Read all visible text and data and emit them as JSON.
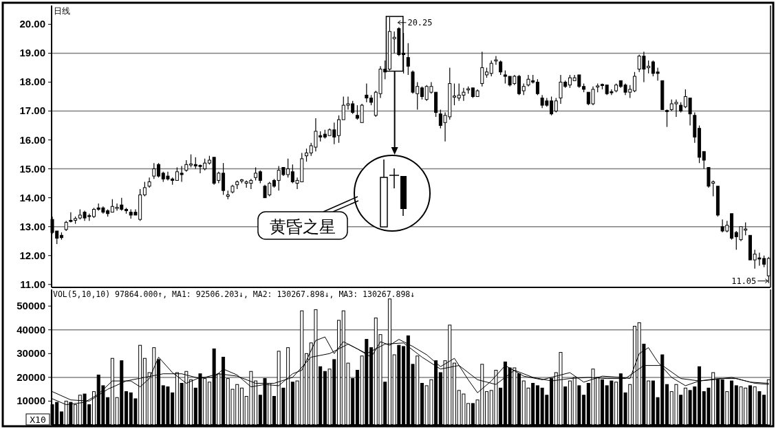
{
  "chart_data": [
    {
      "type": "candlestick",
      "title": "日线",
      "categories": [
        null,
        null,
        null,
        null,
        null,
        null,
        null,
        null,
        null,
        null,
        null,
        null,
        null,
        null,
        null,
        null,
        null,
        null,
        null,
        null,
        null,
        null,
        null,
        null,
        null,
        null,
        null,
        null,
        null,
        null,
        null,
        null,
        null,
        null,
        null,
        null,
        null,
        null,
        null,
        null,
        null,
        null,
        null,
        null,
        null,
        null,
        null,
        null,
        null,
        null,
        null,
        null,
        null,
        null,
        null,
        null,
        null,
        null,
        null,
        null,
        null,
        null,
        null,
        null,
        null,
        null,
        null,
        null,
        null,
        null,
        null,
        null,
        null,
        null,
        null,
        null,
        null,
        null,
        null,
        null,
        null,
        null,
        null,
        null,
        null,
        null,
        null,
        null,
        null,
        null,
        null,
        null,
        null,
        null,
        null,
        null,
        null,
        null,
        null,
        null,
        null,
        null,
        null,
        null,
        null,
        null,
        null,
        null,
        null,
        null,
        null,
        null,
        null,
        null,
        null,
        null,
        null,
        null,
        null,
        null,
        null,
        null,
        null,
        null,
        null,
        null,
        null,
        null,
        null,
        null,
        null,
        null,
        null,
        null,
        null,
        null,
        null,
        null,
        null,
        null,
        null,
        null,
        null,
        null,
        null,
        null,
        null,
        null,
        null,
        null,
        null,
        null,
        null,
        null,
        null,
        null
      ],
      "ohlc": [
        [
          13.25,
          13.35,
          12.75,
          12.8
        ],
        [
          12.85,
          12.85,
          12.4,
          12.6
        ],
        [
          12.7,
          12.8,
          12.55,
          12.62
        ],
        [
          12.9,
          13.2,
          12.85,
          13.15
        ],
        [
          13.22,
          13.5,
          13.15,
          13.18
        ],
        [
          13.22,
          13.35,
          13.1,
          13.28
        ],
        [
          13.3,
          13.6,
          13.25,
          13.4
        ],
        [
          13.5,
          13.55,
          13.2,
          13.3
        ],
        [
          13.38,
          13.45,
          13.2,
          13.35
        ],
        [
          13.35,
          13.65,
          13.3,
          13.6
        ],
        [
          13.65,
          13.8,
          13.55,
          13.6
        ],
        [
          13.65,
          13.7,
          13.45,
          13.5
        ],
        [
          13.55,
          13.6,
          13.35,
          13.45
        ],
        [
          13.5,
          13.95,
          13.5,
          13.7
        ],
        [
          13.63,
          13.8,
          13.55,
          13.67
        ],
        [
          13.75,
          14.0,
          13.55,
          13.6
        ],
        [
          13.6,
          13.65,
          13.45,
          13.55
        ],
        [
          13.5,
          13.6,
          13.28,
          13.4
        ],
        [
          13.5,
          13.6,
          13.4,
          13.4
        ],
        [
          13.25,
          14.3,
          13.2,
          14.1
        ],
        [
          14.1,
          14.55,
          14.05,
          14.35
        ],
        [
          14.4,
          14.7,
          14.35,
          14.55
        ],
        [
          14.75,
          15.2,
          14.65,
          15.0
        ],
        [
          15.15,
          15.2,
          14.7,
          14.75
        ],
        [
          14.85,
          14.9,
          14.55,
          14.65
        ],
        [
          14.75,
          14.9,
          14.6,
          14.65
        ],
        [
          14.65,
          14.7,
          14.45,
          14.6
        ],
        [
          14.6,
          15.05,
          14.6,
          14.9
        ],
        [
          14.85,
          15.1,
          14.55,
          14.8
        ],
        [
          14.95,
          15.3,
          14.9,
          15.15
        ],
        [
          15.13,
          15.5,
          15.05,
          15.17
        ],
        [
          15.15,
          15.4,
          15.0,
          15.1
        ],
        [
          15.12,
          15.15,
          14.85,
          15.08
        ],
        [
          15.0,
          15.35,
          14.95,
          15.2
        ],
        [
          15.2,
          15.45,
          15.15,
          15.3
        ],
        [
          15.4,
          15.4,
          14.45,
          14.5
        ],
        [
          14.6,
          14.9,
          14.5,
          14.85
        ],
        [
          14.85,
          15.2,
          14.1,
          14.25
        ],
        [
          14.05,
          14.25,
          13.95,
          14.1
        ],
        [
          14.2,
          14.45,
          14.15,
          14.4
        ],
        [
          14.45,
          14.6,
          14.3,
          14.55
        ],
        [
          14.58,
          14.65,
          14.5,
          14.62
        ],
        [
          14.5,
          14.6,
          14.35,
          14.55
        ],
        [
          14.5,
          14.65,
          14.3,
          14.6
        ],
        [
          14.7,
          15.05,
          14.6,
          14.85
        ],
        [
          14.9,
          14.95,
          14.5,
          14.6
        ],
        [
          14.4,
          14.45,
          14.0,
          14.0
        ],
        [
          14.1,
          14.55,
          14.05,
          14.5
        ],
        [
          14.6,
          14.65,
          14.35,
          14.4
        ],
        [
          14.6,
          15.1,
          14.25,
          14.95
        ],
        [
          15.05,
          15.05,
          14.75,
          14.8
        ],
        [
          14.8,
          15.35,
          14.7,
          15.0
        ],
        [
          14.9,
          15.15,
          14.5,
          14.55
        ],
        [
          14.5,
          14.7,
          14.3,
          14.6
        ],
        [
          14.55,
          15.55,
          14.55,
          15.35
        ],
        [
          15.45,
          15.7,
          15.25,
          15.55
        ],
        [
          15.55,
          15.9,
          15.45,
          15.8
        ],
        [
          15.75,
          16.75,
          15.6,
          16.3
        ],
        [
          16.15,
          16.3,
          15.95,
          16.1
        ],
        [
          16.2,
          16.35,
          16.05,
          16.1
        ],
        [
          16.15,
          16.4,
          16.15,
          16.35
        ],
        [
          16.35,
          16.6,
          15.85,
          16.1
        ],
        [
          16.15,
          16.85,
          15.9,
          16.7
        ],
        [
          16.7,
          17.5,
          16.7,
          17.2
        ],
        [
          17.2,
          17.5,
          17.05,
          17.25
        ],
        [
          17.25,
          17.35,
          16.9,
          16.95
        ],
        [
          16.85,
          17.2,
          16.7,
          16.75
        ],
        [
          16.6,
          17.25,
          16.6,
          17.2
        ],
        [
          17.55,
          17.95,
          17.3,
          17.45
        ],
        [
          17.45,
          17.55,
          17.2,
          17.3
        ],
        [
          16.85,
          17.7,
          16.8,
          17.65
        ],
        [
          17.6,
          18.55,
          17.45,
          18.45
        ],
        [
          18.45,
          18.75,
          18.1,
          18.35
        ],
        [
          18.45,
          20.25,
          18.4,
          19.75
        ],
        [
          19.5,
          19.75,
          19.0,
          19.55
        ],
        [
          19.85,
          19.9,
          18.9,
          18.95
        ],
        [
          19.0,
          19.7,
          18.3,
          18.95
        ],
        [
          18.85,
          19.35,
          18.25,
          18.55
        ],
        [
          18.35,
          18.4,
          17.6,
          17.65
        ],
        [
          17.6,
          18.0,
          17.05,
          17.85
        ],
        [
          17.8,
          17.85,
          17.4,
          17.5
        ],
        [
          17.4,
          17.9,
          17.35,
          17.85
        ],
        [
          17.65,
          18.0,
          17.6,
          17.85
        ],
        [
          17.65,
          17.65,
          16.8,
          16.95
        ],
        [
          16.9,
          17.05,
          16.4,
          16.5
        ],
        [
          16.6,
          16.95,
          15.95,
          16.85
        ],
        [
          16.8,
          18.5,
          16.7,
          17.95
        ],
        [
          17.48,
          17.95,
          17.2,
          17.52
        ],
        [
          17.45,
          17.95,
          17.35,
          17.55
        ],
        [
          17.55,
          17.8,
          17.35,
          17.65
        ],
        [
          17.73,
          17.85,
          17.6,
          17.77
        ],
        [
          17.8,
          17.8,
          17.45,
          17.5
        ],
        [
          17.5,
          17.75,
          17.5,
          17.7
        ],
        [
          17.95,
          19.05,
          17.85,
          18.5
        ],
        [
          18.25,
          18.5,
          18.15,
          18.35
        ],
        [
          18.3,
          18.75,
          18.2,
          18.65
        ],
        [
          18.73,
          18.9,
          18.6,
          18.77
        ],
        [
          18.7,
          18.75,
          18.25,
          18.35
        ],
        [
          18.25,
          18.4,
          17.95,
          18.2
        ],
        [
          18.2,
          18.2,
          17.85,
          17.9
        ],
        [
          17.95,
          18.25,
          17.9,
          18.2
        ],
        [
          18.2,
          18.25,
          17.55,
          17.6
        ],
        [
          17.7,
          17.95,
          17.55,
          17.85
        ],
        [
          17.9,
          18.25,
          17.85,
          18.1
        ],
        [
          18.05,
          18.25,
          17.95,
          18.0
        ],
        [
          18.0,
          18.1,
          17.55,
          17.6
        ],
        [
          17.45,
          17.55,
          17.1,
          17.2
        ],
        [
          17.35,
          17.45,
          17.15,
          17.2
        ],
        [
          17.35,
          17.5,
          16.85,
          16.9
        ],
        [
          17.0,
          17.45,
          16.95,
          17.35
        ],
        [
          17.45,
          18.25,
          17.25,
          18.0
        ],
        [
          18.0,
          18.05,
          17.8,
          17.85
        ],
        [
          17.9,
          18.25,
          17.8,
          18.15
        ],
        [
          18.05,
          18.25,
          18.05,
          18.15
        ],
        [
          18.25,
          18.25,
          17.8,
          17.85
        ],
        [
          17.85,
          17.95,
          17.65,
          17.75
        ],
        [
          17.65,
          17.65,
          17.2,
          17.25
        ],
        [
          17.25,
          17.85,
          17.2,
          17.75
        ],
        [
          17.83,
          17.95,
          17.65,
          17.87
        ],
        [
          17.92,
          17.95,
          17.75,
          17.88
        ],
        [
          17.9,
          17.9,
          17.55,
          17.6
        ],
        [
          17.67,
          17.75,
          17.55,
          17.63
        ],
        [
          17.7,
          17.95,
          17.65,
          17.9
        ],
        [
          18.05,
          18.05,
          17.8,
          17.85
        ],
        [
          17.9,
          17.95,
          17.55,
          17.65
        ],
        [
          17.65,
          17.9,
          17.45,
          17.75
        ],
        [
          17.7,
          18.35,
          17.65,
          18.2
        ],
        [
          18.45,
          18.95,
          18.35,
          18.9
        ],
        [
          18.9,
          19.05,
          18.0,
          18.45
        ],
        [
          18.5,
          18.75,
          18.3,
          18.55
        ],
        [
          18.7,
          18.75,
          18.2,
          18.3
        ],
        [
          18.35,
          18.5,
          18.05,
          18.3
        ],
        [
          18.05,
          18.05,
          17.05,
          17.05
        ],
        [
          17.02,
          17.05,
          16.45,
          16.98
        ],
        [
          17.05,
          17.4,
          17.0,
          17.25
        ],
        [
          17.25,
          17.4,
          16.8,
          17.3
        ],
        [
          17.2,
          17.3,
          16.95,
          17.0
        ],
        [
          17.15,
          17.75,
          17.1,
          17.5
        ],
        [
          17.45,
          17.45,
          16.5,
          16.9
        ],
        [
          16.85,
          16.95,
          15.9,
          16.1
        ],
        [
          16.4,
          16.5,
          15.2,
          15.4
        ],
        [
          15.6,
          15.6,
          15.0,
          15.3
        ],
        [
          15.05,
          15.05,
          14.35,
          14.4
        ],
        [
          14.5,
          14.6,
          14.05,
          14.55
        ],
        [
          14.4,
          14.4,
          13.35,
          13.4
        ],
        [
          13.0,
          13.25,
          12.8,
          12.85
        ],
        [
          12.85,
          13.2,
          12.8,
          13.05
        ],
        [
          13.45,
          13.45,
          12.55,
          12.6
        ],
        [
          12.8,
          12.85,
          12.2,
          12.65
        ],
        [
          12.55,
          13.0,
          12.5,
          13.0
        ],
        [
          12.88,
          13.15,
          12.7,
          12.92
        ],
        [
          12.7,
          12.7,
          11.85,
          11.85
        ],
        [
          11.85,
          12.2,
          11.55,
          12.05
        ],
        [
          11.92,
          12.1,
          11.65,
          11.88
        ],
        [
          11.9,
          12.0,
          11.6,
          11.7
        ],
        [
          11.3,
          11.95,
          11.05,
          11.9
        ]
      ],
      "ylim": [
        10.9,
        20.65
      ],
      "yticks": [
        {
          "value": 11,
          "label": "11.00"
        },
        {
          "value": 12,
          "label": "12.00"
        },
        {
          "value": 13,
          "label": "13.00"
        },
        {
          "value": 14,
          "label": "14.00"
        },
        {
          "value": 15,
          "label": "15.00"
        },
        {
          "value": 16,
          "label": "16.00"
        },
        {
          "value": 17,
          "label": "17.00"
        },
        {
          "value": 18,
          "label": "18.00"
        },
        {
          "value": 19,
          "label": "19.00"
        },
        {
          "value": 20,
          "label": "20.00"
        }
      ],
      "tick_labels": "y",
      "ref_lines": [
        {
          "axis": "y",
          "value": 13
        },
        {
          "axis": "y",
          "value": 15
        },
        {
          "axis": "y",
          "value": 17
        },
        {
          "axis": "y",
          "value": 19
        }
      ],
      "annotations": [
        "20.25",
        "11.05",
        "黄昏之星"
      ]
    },
    {
      "type": "bar",
      "categories": [
        null,
        null,
        null,
        null,
        null,
        null,
        null,
        null,
        null,
        null,
        null,
        null,
        null,
        null,
        null,
        null,
        null,
        null,
        null,
        null,
        null,
        null,
        null,
        null,
        null,
        null,
        null,
        null,
        null,
        null,
        null,
        null,
        null,
        null,
        null,
        null,
        null,
        null,
        null,
        null,
        null,
        null,
        null,
        null,
        null,
        null,
        null,
        null,
        null,
        null,
        null,
        null,
        null,
        null,
        null,
        null,
        null,
        null,
        null,
        null,
        null,
        null,
        null,
        null,
        null,
        null,
        null,
        null,
        null,
        null,
        null,
        null,
        null,
        null,
        null,
        null,
        null,
        null,
        null,
        null,
        null,
        null,
        null,
        null,
        null,
        null,
        null,
        null,
        null,
        null,
        null,
        null,
        null,
        null,
        null,
        null,
        null,
        null,
        null,
        null,
        null,
        null,
        null,
        null,
        null,
        null,
        null,
        null,
        null,
        null,
        null,
        null,
        null,
        null,
        null,
        null,
        null,
        null,
        null,
        null,
        null,
        null,
        null,
        null,
        null,
        null,
        null,
        null,
        null,
        null,
        null,
        null,
        null,
        null,
        null,
        null,
        null,
        null,
        null,
        null,
        null,
        null,
        null,
        null,
        null,
        null,
        null,
        null,
        null,
        null,
        null,
        null,
        null,
        null,
        null,
        null
      ],
      "ylim": [
        0,
        57000
      ],
      "yticks": [
        10000,
        20000,
        30000,
        40000,
        50000
      ],
      "tick_labels": "y",
      "ref_lines": [
        {
          "axis": "y",
          "value": 20000
        },
        {
          "axis": "y",
          "value": 40000
        }
      ],
      "series": [
        {
          "type": "bar",
          "values": [
            8500,
            9500,
            5500,
            10000,
            9500,
            8500,
            12500,
            13000,
            8500,
            14000,
            21000,
            16500,
            11500,
            28000,
            11500,
            27000,
            14000,
            13500,
            11000,
            33500,
            28000,
            22000,
            32500,
            27500,
            16500,
            16000,
            13500,
            22000,
            17500,
            22500,
            19000,
            15500,
            21500,
            19500,
            18000,
            32000,
            21500,
            28500,
            19500,
            15000,
            17000,
            15500,
            12000,
            22500,
            18500,
            12500,
            19500,
            17500,
            12000,
            31000,
            15500,
            32500,
            18000,
            18500,
            48000,
            30000,
            34500,
            48500,
            24500,
            22500,
            23500,
            27500,
            44000,
            48000,
            26000,
            19500,
            23000,
            29000,
            36000,
            32500,
            45000,
            38000,
            18000,
            53000,
            29500,
            33500,
            33000,
            37500,
            25500,
            29000,
            17500,
            16500,
            19000,
            27000,
            22000,
            27000,
            42000,
            26000,
            14500,
            13000,
            9000,
            9000,
            10500,
            25500,
            14000,
            14500,
            23000,
            15500,
            26500,
            24000,
            24000,
            21500,
            18500,
            15500,
            17500,
            16500,
            15500,
            12500,
            19500,
            22000,
            30500,
            16000,
            18500,
            20000,
            16500,
            12500,
            17500,
            23500,
            20000,
            19000,
            16500,
            18500,
            18000,
            21500,
            13500,
            17000,
            41500,
            43000,
            34000,
            18500,
            18500,
            11500,
            29500,
            17000,
            14000,
            17000,
            12500,
            15500,
            14500,
            16000,
            24500,
            14000,
            15500,
            22000,
            19000,
            19000,
            14000,
            18500,
            16500,
            16000,
            15500,
            16500,
            16000,
            14000,
            12500,
            19000
          ],
          "colors": [
            "#000000",
            "#000000",
            "#000000",
            "#ffffff",
            "#000000",
            "#ffffff",
            "#ffffff",
            "#000000",
            "#000000",
            "#ffffff",
            "#000000",
            "#000000",
            "#000000",
            "#ffffff",
            "#ffffff",
            "#000000",
            "#000000",
            "#000000",
            "#000000",
            "#ffffff",
            "#ffffff",
            "#ffffff",
            "#ffffff",
            "#000000",
            "#000000",
            "#000000",
            "#000000",
            "#ffffff",
            "#000000",
            "#ffffff",
            "#ffffff",
            "#000000",
            "#000000",
            "#ffffff",
            "#ffffff",
            "#000000",
            "#ffffff",
            "#000000",
            "#ffffff",
            "#ffffff",
            "#ffffff",
            "#ffffff",
            "#ffffff",
            "#ffffff",
            "#ffffff",
            "#000000",
            "#000000",
            "#ffffff",
            "#000000",
            "#ffffff",
            "#000000",
            "#ffffff",
            "#000000",
            "#ffffff",
            "#ffffff",
            "#ffffff",
            "#ffffff",
            "#ffffff",
            "#000000",
            "#000000",
            "#ffffff",
            "#000000",
            "#ffffff",
            "#ffffff",
            "#ffffff",
            "#000000",
            "#000000",
            "#ffffff",
            "#000000",
            "#000000",
            "#ffffff",
            "#ffffff",
            "#000000",
            "#ffffff",
            "#ffffff",
            "#000000",
            "#000000",
            "#000000",
            "#000000",
            "#ffffff",
            "#000000",
            "#ffffff",
            "#ffffff",
            "#000000",
            "#000000",
            "#ffffff",
            "#ffffff",
            "#ffffff",
            "#ffffff",
            "#ffffff",
            "#ffffff",
            "#000000",
            "#ffffff",
            "#ffffff",
            "#ffffff",
            "#ffffff",
            "#ffffff",
            "#000000",
            "#000000",
            "#000000",
            "#ffffff",
            "#000000",
            "#ffffff",
            "#ffffff",
            "#000000",
            "#000000",
            "#000000",
            "#000000",
            "#000000",
            "#ffffff",
            "#ffffff",
            "#000000",
            "#ffffff",
            "#ffffff",
            "#000000",
            "#000000",
            "#000000",
            "#ffffff",
            "#ffffff",
            "#000000",
            "#000000",
            "#000000",
            "#ffffff",
            "#000000",
            "#000000",
            "#ffffff",
            "#ffffff",
            "#ffffff",
            "#000000",
            "#ffffff",
            "#000000",
            "#000000",
            "#000000",
            "#000000",
            "#ffffff",
            "#ffffff",
            "#000000",
            "#ffffff",
            "#000000",
            "#000000",
            "#000000",
            "#000000",
            "#000000",
            "#ffffff",
            "#000000",
            "#000000",
            "#ffffff",
            "#000000",
            "#000000",
            "#ffffff",
            "#ffffff",
            "#000000",
            "#ffffff",
            "#000000",
            "#000000",
            "#ffffff"
          ]
        },
        {
          "type": "line",
          "color": "#000000",
          "values": [
            14000,
            null,
            null,
            null,
            10500,
            null,
            null,
            null,
            10000,
            null,
            null,
            null,
            15000,
            null,
            null,
            null,
            18500,
            null,
            null,
            null,
            20000,
            null,
            null,
            null,
            21500,
            null,
            null,
            null,
            21500,
            null,
            null,
            null,
            19500,
            null,
            null,
            null,
            21500,
            null,
            null,
            null,
            20500,
            null,
            null,
            null,
            17500,
            null,
            null,
            null,
            17500,
            null,
            null,
            null,
            20000,
            null,
            null,
            null,
            28500,
            null,
            null,
            null,
            30000,
            null,
            null,
            null,
            34000,
            null,
            null,
            null,
            30000,
            null,
            null,
            null,
            34000,
            null,
            null,
            null,
            34500,
            null,
            null,
            null,
            28500,
            null,
            null,
            null,
            23500,
            null,
            null,
            null,
            25000,
            null,
            null,
            null,
            19000,
            null,
            null,
            null,
            17000,
            null,
            null,
            null,
            23000,
            null,
            null,
            null,
            20000,
            null,
            null,
            null,
            18500,
            null,
            null,
            null,
            19500,
            null,
            null,
            null,
            20000,
            null,
            null,
            null,
            19500,
            null,
            null,
            null,
            19500,
            null,
            null,
            null,
            25000,
            null,
            null,
            null,
            25000,
            null,
            null,
            null,
            19500,
            null,
            null,
            null,
            18500,
            null,
            null,
            null,
            19500,
            null,
            null,
            null,
            19500,
            null,
            null,
            null,
            17500,
            null,
            null,
            17000
          ]
        },
        {
          "type": "line",
          "color": "#000000",
          "values": [
            11000,
            null,
            null,
            8500,
            null,
            null,
            null,
            9500,
            null,
            null,
            13000,
            null,
            null,
            18500,
            null,
            null,
            null,
            18500,
            null,
            16000,
            null,
            19500,
            null,
            28500,
            null,
            null,
            22000,
            null,
            null,
            17500,
            null,
            null,
            20000,
            null,
            null,
            20000,
            null,
            23500,
            null,
            null,
            21000,
            null,
            null,
            16000,
            null,
            null,
            17000,
            null,
            null,
            16500,
            null,
            null,
            21500,
            null,
            23000,
            null,
            null,
            35500,
            null,
            37000,
            null,
            30000,
            null,
            35000,
            null,
            null,
            32000,
            null,
            null,
            28500,
            null,
            35000,
            null,
            33500,
            null,
            36000,
            null,
            null,
            33000,
            null,
            null,
            29500,
            null,
            null,
            24500,
            null,
            null,
            28000,
            null,
            null,
            19000,
            null,
            13500,
            null,
            null,
            18500,
            null,
            null,
            25000,
            null,
            null,
            null,
            20500,
            null,
            null,
            null,
            19000,
            null,
            null,
            20500,
            null,
            null,
            22000,
            null,
            null,
            18000,
            null,
            null,
            null,
            20500,
            null,
            null,
            null,
            20000,
            null,
            19500,
            null,
            30000,
            null,
            32500,
            null,
            26500,
            null,
            null,
            20000,
            null,
            null,
            16500,
            null,
            null,
            18500,
            null,
            null,
            19000,
            null,
            null,
            null,
            20000,
            null,
            null,
            null,
            18000,
            null,
            null,
            null,
            17500
          ]
        }
      ],
      "annotations": [
        "VOL(5,10,10) 97864.000↑, MA1: 92506.203↓, MA2: 130267.898↓, MA3: 130267.898↓",
        "X10"
      ]
    }
  ]
}
